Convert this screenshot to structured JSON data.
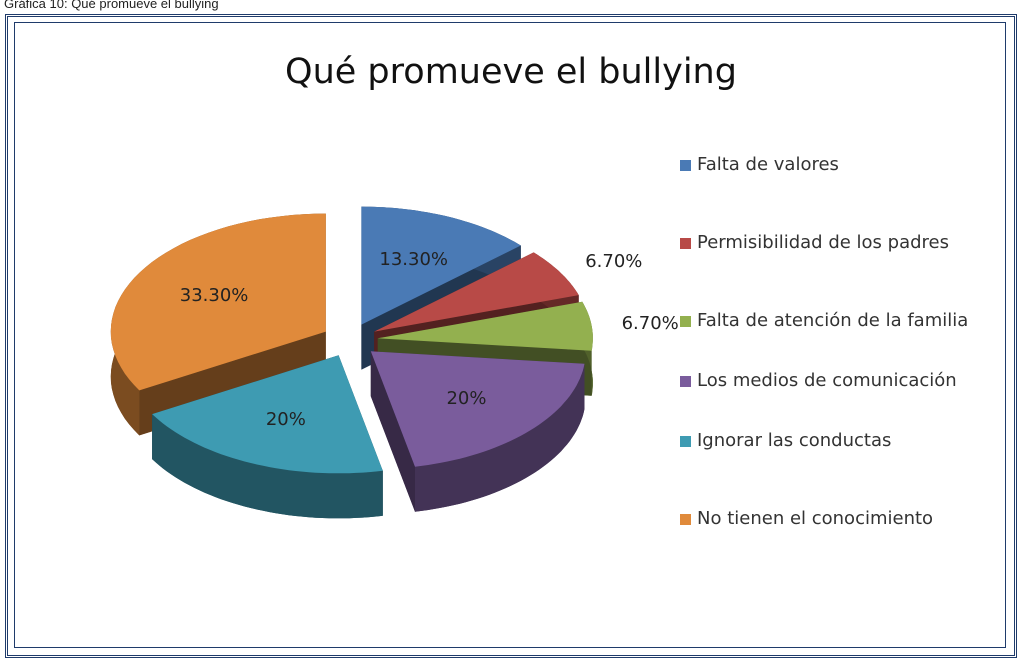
{
  "chart_data": {
    "type": "pie",
    "caption": "Gráfica 10: Qué promueve el bullying",
    "title": "Qué promueve el bullying",
    "categories": [
      "Falta de valores",
      "Permisibilidad de los padres",
      "Falta de atención de la familia",
      "Los medios de comunicación",
      "Ignorar las conductas",
      "No tienen el conocimiento"
    ],
    "values": [
      13.3,
      6.7,
      6.7,
      20,
      20,
      33.3
    ],
    "value_labels": [
      "13.30%",
      "6.70%",
      "6.70%",
      "20%",
      "20%",
      "33.30%"
    ],
    "colors": [
      "#4a7ab5",
      "#b84a47",
      "#93b04f",
      "#7a5c9c",
      "#3e9bb2",
      "#e08a3b"
    ],
    "legend": "right"
  }
}
